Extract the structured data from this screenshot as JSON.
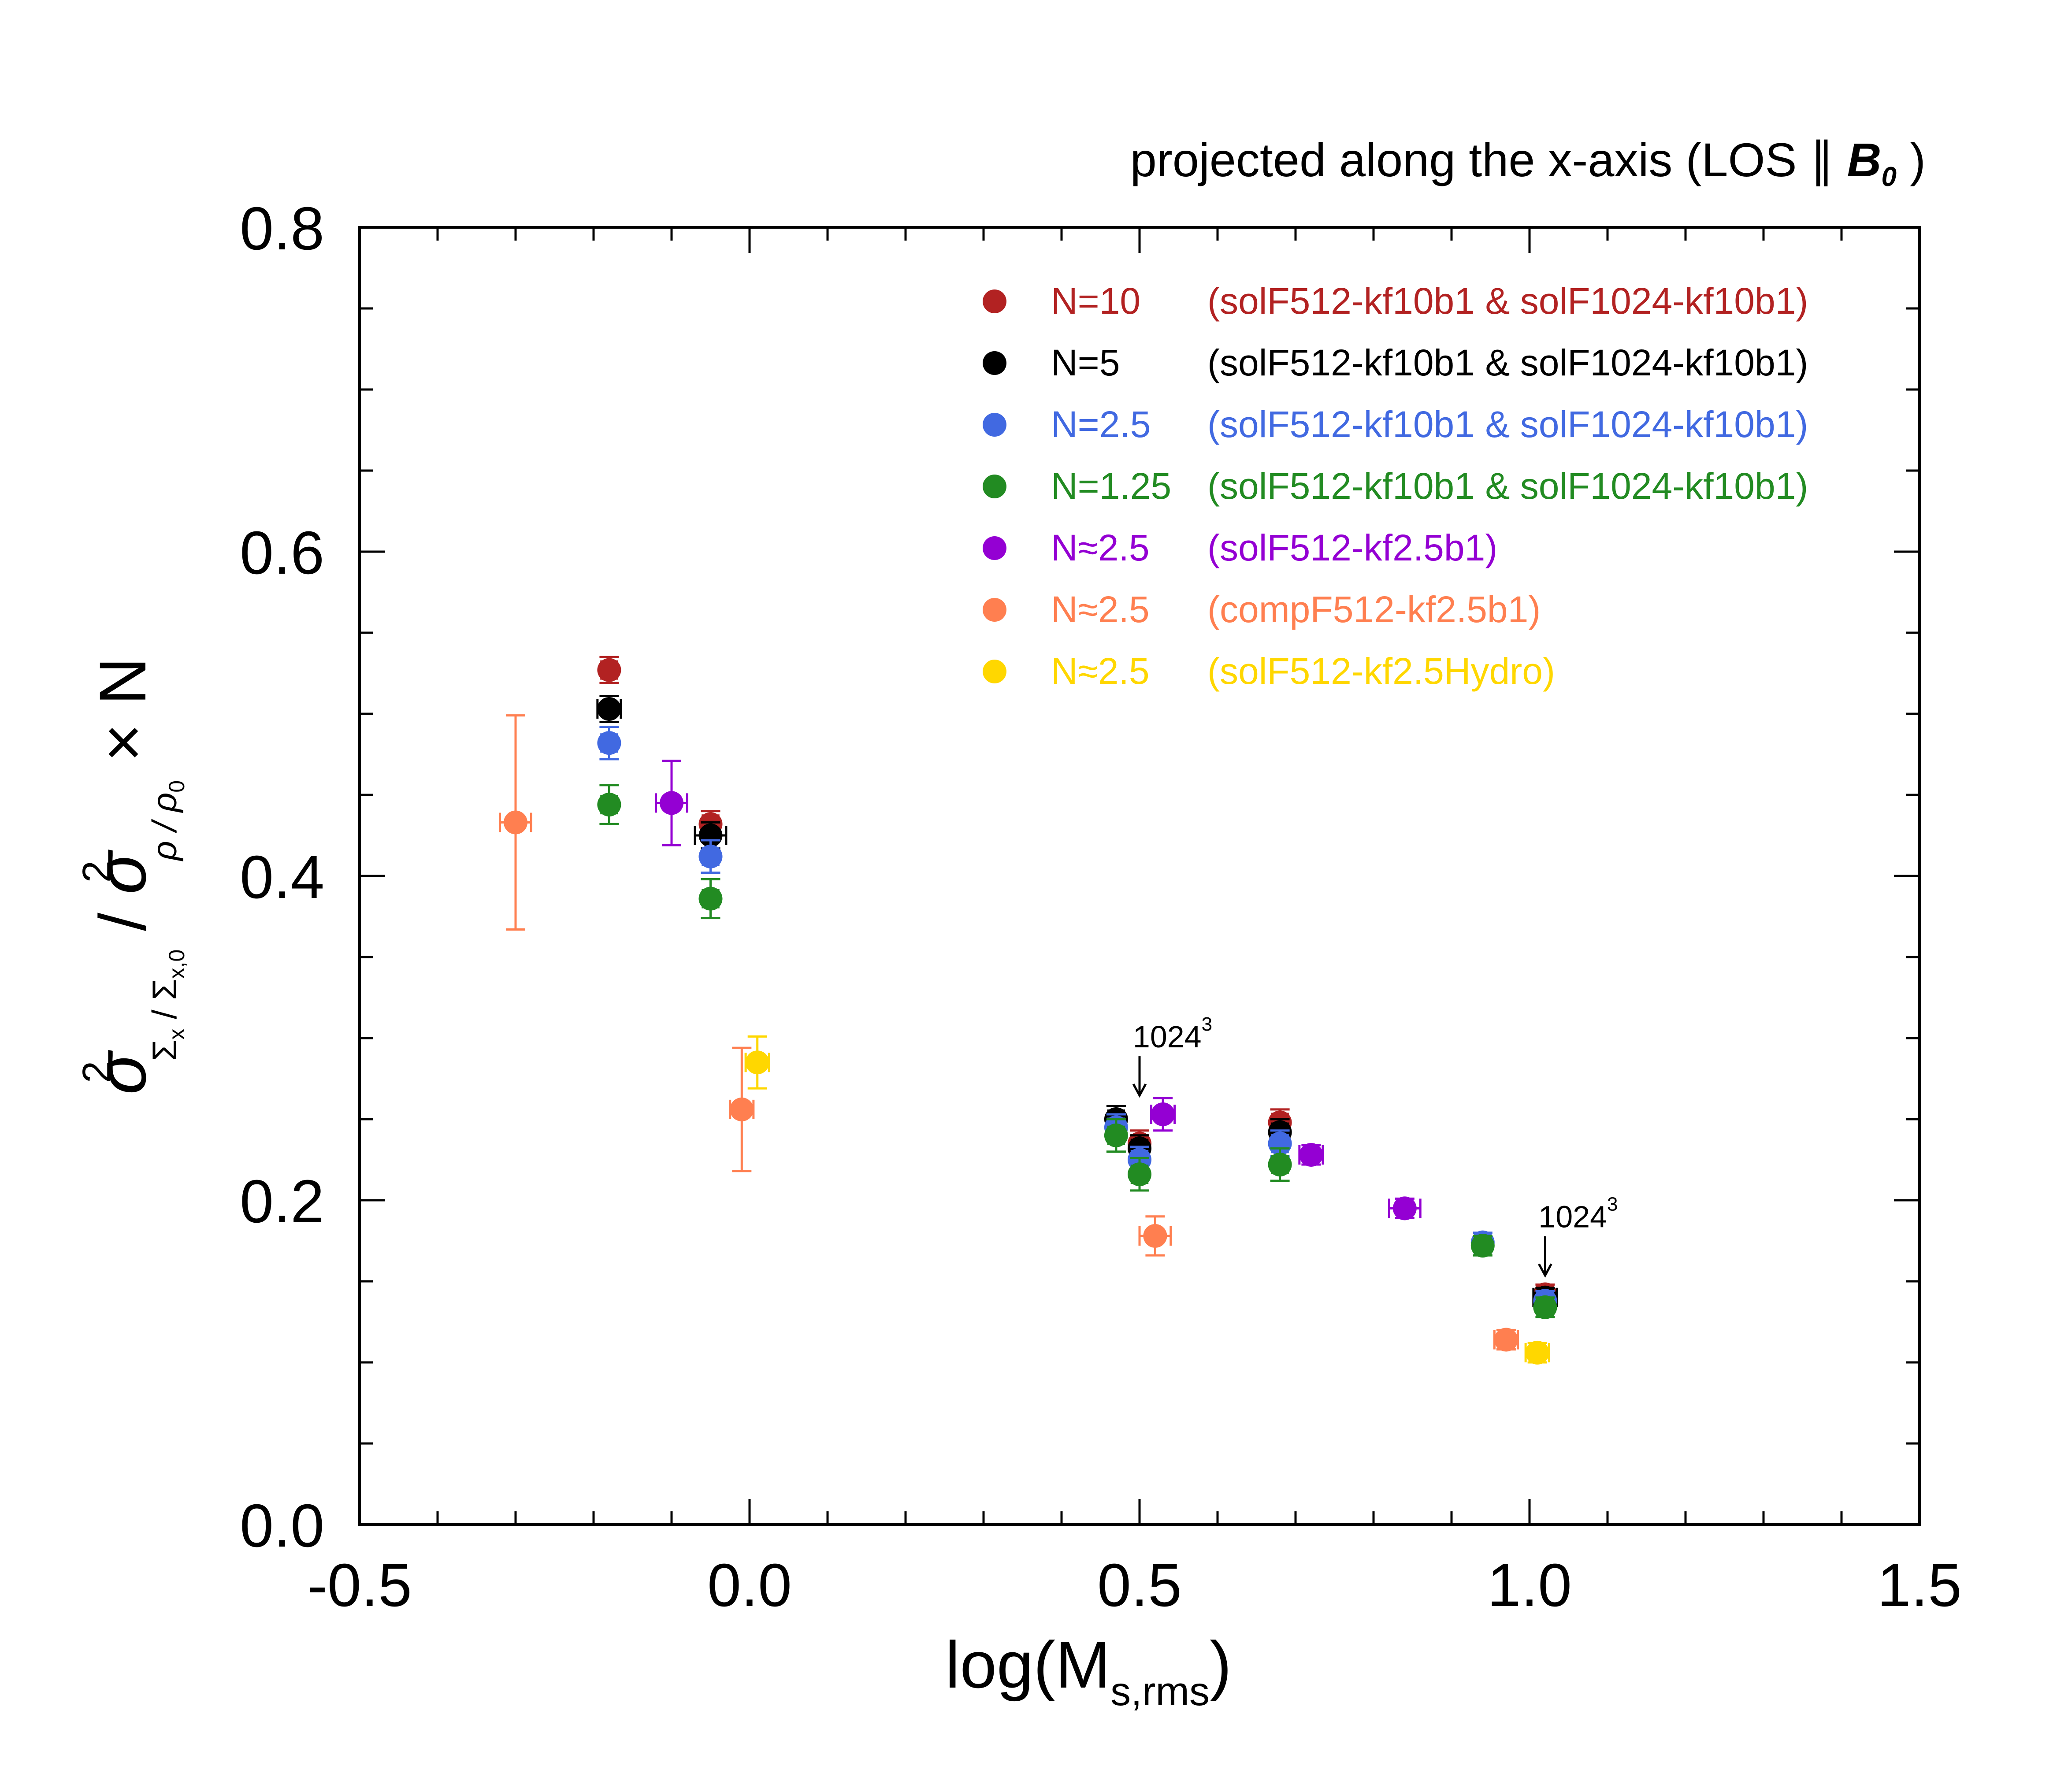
{
  "chart_data": {
    "type": "scatter",
    "title": {
      "main": "projected along the x-axis (LOS ∥ ",
      "bold": "B",
      "bold_sub": "0",
      "close": " )"
    },
    "xlabel": {
      "main": "log(M",
      "sub": "s,rms",
      "close": ")"
    },
    "ylabel": {
      "sigma": "σ",
      "sup": "2",
      "sub1": "Σ",
      "sub1_sub": "x",
      "slash1": " / ",
      "sub2": "Σ",
      "sub2_sub": "x,0",
      "slash": " / ",
      "sigma2": "σ",
      "sup2": "2",
      "sub3": "ρ / ρ",
      "sub3_sub": "0",
      "times": " × N"
    },
    "xlim": [
      -0.5,
      1.5
    ],
    "ylim": [
      0.0,
      0.8
    ],
    "x_ticks": [
      -0.5,
      0.0,
      0.5,
      1.0,
      1.5
    ],
    "x_tick_labels": [
      "-0.5",
      "0.0",
      "0.5",
      "1.0",
      "1.5"
    ],
    "x_minor_step": 0.1,
    "y_ticks": [
      0.0,
      0.2,
      0.4,
      0.6,
      0.8
    ],
    "y_tick_labels": [
      "0.0",
      "0.2",
      "0.4",
      "0.6",
      "0.8"
    ],
    "y_minor_step": 0.05,
    "grid": false,
    "legend_position": "top-right",
    "series": [
      {
        "name": "N=10",
        "description": "(solF512-kf10b1 & solF1024-kf10b1)",
        "color": "#b22222",
        "points": [
          {
            "x": -0.18,
            "y": 0.527,
            "xerr": 0.01,
            "yerr": 0.008
          },
          {
            "x": -0.05,
            "y": 0.432,
            "xerr": 0.01,
            "yerr": 0.008
          },
          {
            "x": 0.5,
            "y": 0.235,
            "xerr": 0.01,
            "yerr": 0.008
          },
          {
            "x": 0.68,
            "y": 0.248,
            "xerr": 0.01,
            "yerr": 0.008
          },
          {
            "x": 1.02,
            "y": 0.142,
            "xerr": 0.01,
            "yerr": 0.006
          }
        ]
      },
      {
        "name": "N=5",
        "description": "(solF512-kf10b1 & solF1024-kf10b1)",
        "color": "#000000",
        "points": [
          {
            "x": -0.18,
            "y": 0.503,
            "xerr": 0.015,
            "yerr": 0.008
          },
          {
            "x": -0.05,
            "y": 0.425,
            "xerr": 0.02,
            "yerr": 0.008
          },
          {
            "x": 0.47,
            "y": 0.25,
            "xerr": 0.01,
            "yerr": 0.008
          },
          {
            "x": 0.5,
            "y": 0.232,
            "xerr": 0.01,
            "yerr": 0.008
          },
          {
            "x": 0.68,
            "y": 0.242,
            "xerr": 0.01,
            "yerr": 0.008
          },
          {
            "x": 1.02,
            "y": 0.14,
            "xerr": 0.015,
            "yerr": 0.006
          }
        ]
      },
      {
        "name": "N=2.5",
        "description": "(solF512-kf10b1 & solF1024-kf10b1)",
        "color": "#4169e1",
        "points": [
          {
            "x": -0.18,
            "y": 0.482,
            "xerr": 0.01,
            "yerr": 0.01
          },
          {
            "x": -0.05,
            "y": 0.412,
            "xerr": 0.01,
            "yerr": 0.01
          },
          {
            "x": 0.47,
            "y": 0.245,
            "xerr": 0.01,
            "yerr": 0.008
          },
          {
            "x": 0.5,
            "y": 0.225,
            "xerr": 0.01,
            "yerr": 0.008
          },
          {
            "x": 0.68,
            "y": 0.235,
            "xerr": 0.01,
            "yerr": 0.008
          },
          {
            "x": 0.94,
            "y": 0.174,
            "xerr": 0.01,
            "yerr": 0.006
          },
          {
            "x": 1.02,
            "y": 0.138,
            "xerr": 0.01,
            "yerr": 0.006
          }
        ]
      },
      {
        "name": "N=1.25",
        "description": "(solF512-kf10b1 & solF1024-kf10b1)",
        "color": "#228b22",
        "points": [
          {
            "x": -0.18,
            "y": 0.444,
            "xerr": 0.01,
            "yerr": 0.012
          },
          {
            "x": -0.05,
            "y": 0.386,
            "xerr": 0.01,
            "yerr": 0.012
          },
          {
            "x": 0.47,
            "y": 0.24,
            "xerr": 0.01,
            "yerr": 0.01
          },
          {
            "x": 0.5,
            "y": 0.216,
            "xerr": 0.01,
            "yerr": 0.01
          },
          {
            "x": 0.68,
            "y": 0.222,
            "xerr": 0.01,
            "yerr": 0.01
          },
          {
            "x": 0.94,
            "y": 0.172,
            "xerr": 0.01,
            "yerr": 0.006
          },
          {
            "x": 1.02,
            "y": 0.134,
            "xerr": 0.01,
            "yerr": 0.006
          }
        ]
      },
      {
        "name": "N≈2.5",
        "description": "(solF512-kf2.5b1)",
        "color": "#9400d3",
        "points": [
          {
            "x": -0.1,
            "y": 0.445,
            "xerr": 0.02,
            "yerr": 0.026
          },
          {
            "x": 0.53,
            "y": 0.253,
            "xerr": 0.015,
            "yerr": 0.01
          },
          {
            "x": 0.72,
            "y": 0.228,
            "xerr": 0.015,
            "yerr": 0.006
          },
          {
            "x": 0.84,
            "y": 0.195,
            "xerr": 0.02,
            "yerr": 0.006
          }
        ]
      },
      {
        "name": "N≈2.5",
        "description": "(compF512-kf2.5b1)",
        "color": "#ff7f50",
        "points": [
          {
            "x": -0.3,
            "y": 0.433,
            "xerr": 0.02,
            "yerr": 0.066
          },
          {
            "x": -0.01,
            "y": 0.256,
            "xerr": 0.015,
            "yerr": 0.038
          },
          {
            "x": 0.52,
            "y": 0.178,
            "xerr": 0.02,
            "yerr": 0.012
          },
          {
            "x": 0.97,
            "y": 0.114,
            "xerr": 0.015,
            "yerr": 0.006
          }
        ]
      },
      {
        "name": "N≈2.5",
        "description": "(solF512-kf2.5Hydro)",
        "color": "#ffd700",
        "points": [
          {
            "x": 0.01,
            "y": 0.285,
            "xerr": 0.015,
            "yerr": 0.016
          },
          {
            "x": 1.01,
            "y": 0.106,
            "xerr": 0.015,
            "yerr": 0.006
          }
        ]
      }
    ],
    "annotations": [
      {
        "text": "1024",
        "sup": "3",
        "x": 0.5,
        "y": 0.263
      },
      {
        "text": "1024",
        "sup": "3",
        "x": 1.02,
        "y": 0.152
      }
    ]
  }
}
